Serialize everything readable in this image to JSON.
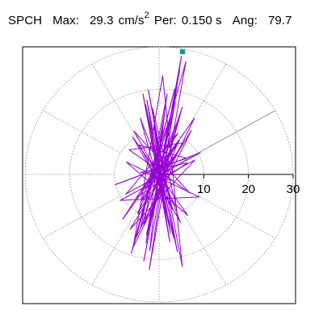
{
  "header": {
    "station": "SPCH",
    "max_label": "Max:",
    "max_value": "29.3",
    "max_unit": "cm/s",
    "max_unit_exp": "2",
    "per_label": "Per:",
    "per_value": "0.150 s",
    "ang_label": "Ang:",
    "ang_value": "79.7"
  },
  "colors": {
    "trace": "#9400d3",
    "marker": "#00a080",
    "grid": "#888888",
    "axis": "#000000",
    "angle_line": "#888888"
  },
  "chart_data": {
    "type": "scatter",
    "title": "",
    "xlabel": "",
    "ylabel": "",
    "radial_ticks": [
      "10",
      "20",
      "30"
    ],
    "radial_tick_values": [
      10,
      20,
      30
    ],
    "rlim": [
      0,
      30
    ],
    "peak_value": 29.3,
    "peak_angle_deg": 79.7,
    "angle_line_deg": 30,
    "grid": true,
    "polar_spokes_deg": [
      0,
      30,
      60,
      90,
      120,
      150,
      180,
      210,
      240,
      270,
      300,
      330
    ],
    "series": [
      {
        "points": [
          [
            0,
            0
          ],
          [
            3.2,
            4.1
          ],
          [
            -2.8,
            -3.3
          ],
          [
            4.5,
            7.9
          ],
          [
            -3.9,
            -6.2
          ],
          [
            2.1,
            12.3
          ],
          [
            -1.5,
            -9.8
          ],
          [
            5.2,
            15.8
          ],
          [
            -4.1,
            -12.5
          ],
          [
            1.8,
            18.9
          ],
          [
            -2.9,
            -16.1
          ],
          [
            4.6,
            24.5
          ],
          [
            -3.4,
            -20.3
          ],
          [
            5.0,
            27.8
          ],
          [
            -2.2,
            -22.4
          ],
          [
            6.0,
            26.5
          ],
          [
            -6.2,
            -18.5
          ],
          [
            3.5,
            20.1
          ],
          [
            -5.1,
            -14.8
          ],
          [
            7.9,
            13.2
          ],
          [
            -8.1,
            -10.5
          ],
          [
            4.2,
            9.7
          ],
          [
            -7.4,
            -4.6
          ],
          [
            9.2,
            5.1
          ],
          [
            -9.8,
            -2.4
          ],
          [
            6.1,
            3.8
          ],
          [
            -4.4,
            6.9
          ],
          [
            3.0,
            -8.2
          ],
          [
            -1.2,
            11.5
          ],
          [
            2.5,
            -13.7
          ],
          [
            -3.0,
            16.4
          ],
          [
            4.1,
            -18.2
          ],
          [
            -2.4,
            19.8
          ],
          [
            5.2,
            -21.6
          ],
          [
            0.8,
            23.2
          ],
          [
            -5.8,
            -17.1
          ],
          [
            7.2,
            10.3
          ],
          [
            -6.5,
            -12.9
          ],
          [
            8.0,
            3.4
          ],
          [
            -8.7,
            -6.1
          ],
          [
            9.0,
            -5.3
          ],
          [
            -7.3,
            2.9
          ],
          [
            6.4,
            -9.6
          ],
          [
            -5.9,
            8.8
          ],
          [
            4.8,
            -11.3
          ],
          [
            -4.2,
            13.2
          ],
          [
            3.3,
            -14.9
          ],
          [
            -2.7,
            17.4
          ],
          [
            2.4,
            -15.8
          ],
          [
            -3.6,
            18.9
          ],
          [
            1.7,
            -11.2
          ],
          [
            -1.5,
            15.6
          ],
          [
            3.9,
            -7.8
          ],
          [
            -5.6,
            10.2
          ],
          [
            6.8,
            -4.3
          ],
          [
            -6.7,
            5.8
          ],
          [
            5.4,
            7.4
          ],
          [
            -4.8,
            -9.2
          ],
          [
            4.3,
            12.8
          ],
          [
            -2.8,
            -14.1
          ],
          [
            3.6,
            17.1
          ],
          [
            -2.1,
            -17.9
          ],
          [
            1.2,
            14.3
          ],
          [
            -3.4,
            -11.8
          ],
          [
            4.5,
            8.2
          ],
          [
            -5.2,
            -5.6
          ],
          [
            6.3,
            2.7
          ],
          [
            -4.1,
            0.5
          ],
          [
            2.8,
            -1.4
          ],
          [
            -1.6,
            2.1
          ],
          [
            0.6,
            -0.9
          ],
          [
            0,
            0
          ]
        ]
      }
    ]
  }
}
